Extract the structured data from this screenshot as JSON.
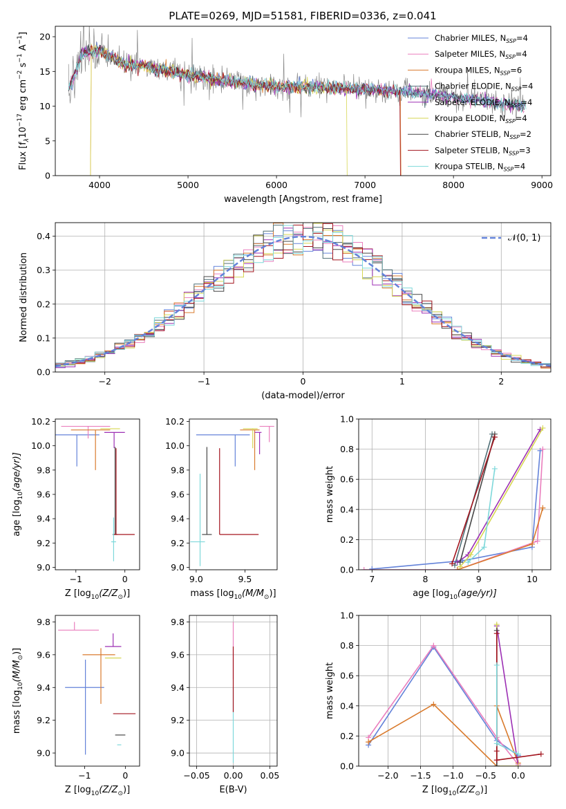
{
  "figure": {
    "title": "PLATE=0269, MJD=51581, FIBERID=0336, z=0.041"
  },
  "colors": [
    "#6382d9",
    "#ea7ebd",
    "#d97a2c",
    "#4f6f77",
    "#9c2fb4",
    "#d6d652",
    "#474747",
    "#a3141e",
    "#7dd8da"
  ],
  "chart_data": [
    {
      "id": "spectrum",
      "type": "line",
      "xlabel": "wavelength [Angstrom, rest frame]",
      "ylabel": "Flux [f",
      "ylabel_parts": [
        "λ",
        "10",
        "−17",
        " erg cm",
        "−2",
        " s",
        "−1",
        " A",
        "−1",
        "]"
      ],
      "xlim": [
        3500,
        9100
      ],
      "ylim": [
        0,
        21.5
      ],
      "xticks": [
        "4000",
        "5000",
        "6000",
        "7000",
        "8000",
        "9000"
      ],
      "xtick_values": [
        4000,
        5000,
        6000,
        7000,
        8000,
        9000
      ],
      "yticks": [
        "0",
        "5",
        "10",
        "15",
        "20"
      ],
      "ytick_values": [
        0,
        5,
        10,
        15,
        20
      ],
      "legend_position": "top-right",
      "observed_color": "#888888",
      "continuum": [
        [
          3650,
          12.5
        ],
        [
          3700,
          14
        ],
        [
          3800,
          17.5
        ],
        [
          4000,
          18
        ],
        [
          4300,
          16
        ],
        [
          4500,
          15.8
        ],
        [
          5000,
          14.5
        ],
        [
          5500,
          13.5
        ],
        [
          6000,
          12.8
        ],
        [
          6500,
          12.7
        ],
        [
          7000,
          12.5
        ],
        [
          7500,
          12
        ],
        [
          8000,
          11.3
        ],
        [
          8500,
          10.5
        ],
        [
          8800,
          10
        ]
      ],
      "model_cutoffs": [
        {
          "series": 2,
          "start": 3900,
          "end": 7400
        },
        {
          "series": 5,
          "start": 3900,
          "end": 6800
        },
        {
          "series": 7,
          "start": 3650,
          "end": 7400
        }
      ],
      "series": [
        {
          "name": "Chabrier MILES, N",
          "sub": "SSP",
          "val": "=4"
        },
        {
          "name": "Salpeter MILES, N",
          "sub": "SSP",
          "val": "=4"
        },
        {
          "name": "Kroupa MILES, N",
          "sub": "SSP",
          "val": "=6"
        },
        {
          "name": "Chabrier ELODIE, N",
          "sub": "SSP",
          "val": "=4"
        },
        {
          "name": "Salpeter ELODIE, N",
          "sub": "SSP",
          "val": "=4"
        },
        {
          "name": "Kroupa ELODIE, N",
          "sub": "SSP",
          "val": "=4"
        },
        {
          "name": "Chabrier STELIB, N",
          "sub": "SSP",
          "val": "=2"
        },
        {
          "name": "Salpeter STELIB, N",
          "sub": "SSP",
          "val": "=3"
        },
        {
          "name": "Kroupa STELIB, N",
          "sub": "SSP",
          "val": "=4"
        }
      ]
    },
    {
      "id": "residuals",
      "type": "step",
      "xlabel": "(data-model)/error",
      "ylabel": "Normed distribution",
      "xlim": [
        -2.5,
        2.5
      ],
      "ylim": [
        0,
        0.44
      ],
      "xticks": [
        "−2",
        "−1",
        "0",
        "1",
        "2"
      ],
      "xtick_values": [
        -2,
        -1,
        0,
        1,
        2
      ],
      "yticks": [
        "0.0",
        "0.1",
        "0.2",
        "0.3",
        "0.4"
      ],
      "ytick_values": [
        0,
        0.1,
        0.2,
        0.3,
        0.4
      ],
      "grid": true,
      "bin_width": 0.1,
      "legend": "𝒩(0, 1)",
      "legend_position": "top-right",
      "gaussian_color": "#6382d9"
    },
    {
      "id": "age-vs-Z",
      "type": "errorbar",
      "xlabel": "Z [log",
      "xlabel_parts": [
        "10",
        "(Z/Z",
        "⊙",
        ")]"
      ],
      "ylabel": "age  [log",
      "ylabel_parts": [
        "10",
        "(age/yr)]"
      ],
      "xlim": [
        -1.42,
        0.3
      ],
      "ylim": [
        8.98,
        10.22
      ],
      "xticks": [
        "−1",
        "0"
      ],
      "xtick_values": [
        -1,
        0
      ],
      "yticks": [
        "9.0",
        "9.2",
        "9.4",
        "9.6",
        "9.8",
        "10.0",
        "10.2"
      ],
      "ytick_values": [
        9.0,
        9.2,
        9.4,
        9.6,
        9.8,
        10.0,
        10.2
      ],
      "points": [
        {
          "c": 0,
          "x": -0.98,
          "y": 10.09,
          "xerr": [
            0.5,
            0.46
          ],
          "yerr": [
            0.26,
            0
          ]
        },
        {
          "c": 1,
          "x": -0.75,
          "y": 10.16,
          "xerr": [
            0.55,
            0.45
          ],
          "yerr": [
            0.1,
            0
          ]
        },
        {
          "c": 2,
          "x": -0.6,
          "y": 10.13,
          "xerr": [
            0.5,
            0.3
          ],
          "yerr": [
            0.33,
            0
          ]
        },
        {
          "c": 4,
          "x": -0.22,
          "y": 10.11,
          "xerr": [
            0.2,
            0.22
          ],
          "yerr": [
            0.13,
            0
          ]
        },
        {
          "c": 5,
          "x": -0.3,
          "y": 10.14,
          "xerr": [
            0.2,
            0.2
          ],
          "yerr": [
            0.0,
            0
          ]
        },
        {
          "c": 6,
          "x": -0.2,
          "y": 9.27,
          "xerr": [
            0.05,
            0.05
          ],
          "yerr": [
            0,
            0.72
          ]
        },
        {
          "c": 7,
          "x": -0.18,
          "y": 9.27,
          "xerr": [
            0.05,
            0.38
          ],
          "yerr": [
            0,
            0.71
          ]
        },
        {
          "c": 8,
          "x": -0.23,
          "y": 9.21,
          "xerr": [
            0.05,
            0.05
          ],
          "yerr": [
            0.16,
            0.2
          ]
        }
      ]
    },
    {
      "id": "age-vs-mass",
      "type": "errorbar",
      "xlabel": "mass [log",
      "xlabel_parts": [
        "10",
        "(M/M",
        "⊙",
        ")]"
      ],
      "ylabel": "",
      "xlim": [
        8.93,
        9.83
      ],
      "ylim": [
        8.98,
        10.22
      ],
      "xticks": [
        "9.0",
        "9.5"
      ],
      "xtick_values": [
        9.0,
        9.5
      ],
      "yticks": [
        "9.0",
        "9.2",
        "9.4",
        "9.6",
        "9.8",
        "10.0",
        "10.2"
      ],
      "ytick_values": [
        9.0,
        9.2,
        9.4,
        9.6,
        9.8,
        10.0,
        10.2
      ],
      "points": [
        {
          "c": 0,
          "x": 9.4,
          "y": 10.09,
          "xerr": [
            0.4,
            0.15
          ],
          "yerr": [
            0.26,
            0
          ]
        },
        {
          "c": 1,
          "x": 9.75,
          "y": 10.16,
          "xerr": [
            0.1,
            0.05
          ],
          "yerr": [
            0.13,
            0
          ]
        },
        {
          "c": 2,
          "x": 9.6,
          "y": 10.13,
          "xerr": [
            0.15,
            0.05
          ],
          "yerr": [
            0.33,
            0
          ]
        },
        {
          "c": 4,
          "x": 9.65,
          "y": 10.11,
          "xerr": [
            0.05,
            0.02
          ],
          "yerr": [
            0.18,
            0
          ]
        },
        {
          "c": 5,
          "x": 9.58,
          "y": 10.14,
          "xerr": [
            0.1,
            0.05
          ],
          "yerr": [
            0.16,
            0
          ]
        },
        {
          "c": 6,
          "x": 9.11,
          "y": 9.27,
          "xerr": [
            0.05,
            0.05
          ],
          "yerr": [
            0,
            0.72
          ]
        },
        {
          "c": 7,
          "x": 9.24,
          "y": 9.27,
          "xerr": [
            0.0,
            0.4
          ],
          "yerr": [
            0,
            0.71
          ]
        },
        {
          "c": 8,
          "x": 9.04,
          "y": 9.21,
          "xerr": [
            0.1,
            0.05
          ],
          "yerr": [
            0.2,
            0.56
          ]
        }
      ]
    },
    {
      "id": "weight-vs-age",
      "type": "line",
      "xlabel": "age  [log",
      "xlabel_parts": [
        "10",
        "(age/yr)]"
      ],
      "ylabel": "mass weight",
      "xlim": [
        6.75,
        10.35
      ],
      "ylim": [
        0,
        1.0
      ],
      "xticks": [
        "7",
        "8",
        "9",
        "10"
      ],
      "xtick_values": [
        7,
        8,
        9,
        10
      ],
      "yticks": [
        "0.0",
        "0.2",
        "0.4",
        "0.6",
        "0.8",
        "1.0"
      ],
      "ytick_values": [
        0,
        0.2,
        0.4,
        0.6,
        0.8,
        1.0
      ],
      "grid": true,
      "series": [
        {
          "c": 0,
          "points": [
            [
              7.0,
              0.005
            ],
            [
              8.7,
              0.06
            ],
            [
              10.0,
              0.15
            ],
            [
              10.15,
              0.79
            ]
          ]
        },
        {
          "c": 1,
          "points": [
            [
              6.85,
              0.0
            ],
            [
              8.6,
              0.0
            ],
            [
              10.1,
              0.19
            ],
            [
              10.2,
              0.8
            ]
          ]
        },
        {
          "c": 2,
          "points": [
            [
              8.6,
              0.0
            ],
            [
              10.0,
              0.17
            ],
            [
              10.2,
              0.41
            ]
          ]
        },
        {
          "c": 3,
          "points": [
            [
              8.55,
              0.03
            ],
            [
              9.25,
              0.9
            ]
          ]
        },
        {
          "c": 4,
          "points": [
            [
              8.6,
              0.05
            ],
            [
              8.8,
              0.1
            ],
            [
              10.15,
              0.93
            ]
          ]
        },
        {
          "c": 5,
          "points": [
            [
              8.65,
              0.02
            ],
            [
              8.85,
              0.1
            ],
            [
              10.2,
              0.94
            ]
          ]
        },
        {
          "c": 6,
          "points": [
            [
              8.65,
              0.05
            ],
            [
              9.3,
              0.9
            ]
          ]
        },
        {
          "c": 7,
          "points": [
            [
              8.5,
              0.04
            ],
            [
              9.3,
              0.88
            ]
          ]
        },
        {
          "c": 8,
          "points": [
            [
              8.8,
              0.05
            ],
            [
              9.1,
              0.15
            ],
            [
              9.3,
              0.67
            ]
          ]
        }
      ]
    },
    {
      "id": "mass-vs-Z",
      "type": "errorbar",
      "xlabel": "Z [log",
      "xlabel_parts": [
        "10",
        "(Z/Z",
        "⊙",
        ")]"
      ],
      "ylabel": "mass [log",
      "ylabel_parts": [
        "10",
        "(M/M",
        "⊙",
        ")]"
      ],
      "xlim": [
        -1.72,
        0.35
      ],
      "ylim": [
        8.92,
        9.84
      ],
      "xticks": [
        "−1",
        "0"
      ],
      "xtick_values": [
        -1,
        0
      ],
      "yticks": [
        "9.0",
        "9.2",
        "9.4",
        "9.6",
        "9.8"
      ],
      "ytick_values": [
        9.0,
        9.2,
        9.4,
        9.6,
        9.8
      ],
      "points": [
        {
          "c": 0,
          "x": -0.98,
          "y": 9.4,
          "xerr": [
            0.5,
            0.46
          ],
          "yerr": [
            0.41,
            0.17
          ]
        },
        {
          "c": 1,
          "x": -1.25,
          "y": 9.75,
          "xerr": [
            0.4,
            0.6
          ],
          "yerr": [
            0.0,
            0.05
          ]
        },
        {
          "c": 2,
          "x": -0.6,
          "y": 9.6,
          "xerr": [
            0.45,
            0.35
          ],
          "yerr": [
            0.3,
            0.04
          ]
        },
        {
          "c": 4,
          "x": -0.3,
          "y": 9.65,
          "xerr": [
            0.2,
            0.2
          ],
          "yerr": [
            0.0,
            0.08
          ]
        },
        {
          "c": 5,
          "x": -0.3,
          "y": 9.58,
          "xerr": [
            0.2,
            0.2
          ],
          "yerr": [
            0.0,
            0.0
          ]
        },
        {
          "c": 6,
          "x": -0.2,
          "y": 9.11,
          "xerr": [
            0.05,
            0.2
          ],
          "yerr": [
            0.0,
            0.0
          ]
        },
        {
          "c": 7,
          "x": -0.25,
          "y": 9.24,
          "xerr": [
            0.05,
            0.5
          ],
          "yerr": [
            0.0,
            0.0
          ]
        },
        {
          "c": 8,
          "x": -0.15,
          "y": 9.05,
          "xerr": [
            0.05,
            0.05
          ],
          "yerr": [
            0.0,
            0.0
          ]
        }
      ]
    },
    {
      "id": "mass-vs-EBV",
      "type": "errorbar",
      "xlabel": "E(B-V)",
      "ylabel": "",
      "xlim": [
        -0.06,
        0.06
      ],
      "ylim": [
        8.92,
        9.84
      ],
      "xticks": [
        "−0.05",
        "0.00",
        "0.05"
      ],
      "xtick_values": [
        -0.05,
        0.0,
        0.05
      ],
      "yticks": [
        "9.0",
        "9.2",
        "9.4",
        "9.6",
        "9.8"
      ],
      "ytick_values": [
        9.0,
        9.2,
        9.4,
        9.6,
        9.8
      ],
      "grid": true,
      "points": [
        {
          "c": 1,
          "x": 0.0,
          "y": 9.6,
          "xerr": [
            0,
            0
          ],
          "yerr": [
            0.15,
            0.2
          ]
        },
        {
          "c": 8,
          "x": 0.0,
          "y": 9.3,
          "xerr": [
            0,
            0
          ],
          "yerr": [
            0.36,
            0.1
          ]
        },
        {
          "c": 7,
          "x": 0.0,
          "y": 9.45,
          "xerr": [
            0,
            0
          ],
          "yerr": [
            0.2,
            0.2
          ]
        }
      ]
    },
    {
      "id": "weight-vs-Z",
      "type": "line",
      "xlabel": "Z [log",
      "xlabel_parts": [
        "10",
        "(Z/Z",
        "⊙",
        ")]"
      ],
      "ylabel": "mass weight",
      "xlim": [
        -2.45,
        0.5
      ],
      "ylim": [
        0,
        1.0
      ],
      "xticks": [
        "−2.0",
        "−1.5",
        "−1.0",
        "−0.5",
        "0.0"
      ],
      "xtick_values": [
        -2.0,
        -1.5,
        -1.0,
        -0.5,
        0.0
      ],
      "yticks": [
        "0.0",
        "0.2",
        "0.4",
        "0.6",
        "0.8",
        "1.0"
      ],
      "ytick_values": [
        0,
        0.2,
        0.4,
        0.6,
        0.8,
        1.0
      ],
      "grid": true,
      "series": [
        {
          "c": 0,
          "points": [
            [
              -2.3,
              0.14
            ],
            [
              -1.3,
              0.79
            ],
            [
              -0.33,
              0.17
            ],
            [
              0.0,
              0.07
            ]
          ]
        },
        {
          "c": 1,
          "points": [
            [
              -2.3,
              0.19
            ],
            [
              -1.3,
              0.8
            ],
            [
              -0.33,
              0.19
            ],
            [
              0.0,
              0.01
            ]
          ]
        },
        {
          "c": 2,
          "points": [
            [
              -2.3,
              0.16
            ],
            [
              -1.3,
              0.41
            ],
            [
              -0.33,
              0.0
            ],
            [
              -0.33,
              0.4
            ],
            [
              0.0,
              0.02
            ]
          ]
        },
        {
          "c": 4,
          "points": [
            [
              -0.33,
              0.0
            ],
            [
              -0.33,
              0.93
            ],
            [
              0.0,
              0.0
            ]
          ]
        },
        {
          "c": 5,
          "points": [
            [
              -0.33,
              0.94
            ],
            [
              -0.33,
              0.0
            ],
            [
              0.0,
              0.0
            ]
          ]
        },
        {
          "c": 6,
          "points": [
            [
              -0.33,
              0.9
            ],
            [
              -0.33,
              0.0
            ]
          ]
        },
        {
          "c": 7,
          "points": [
            [
              -0.33,
              0.88
            ],
            [
              -0.33,
              0.1
            ],
            [
              -0.33,
              0.04
            ],
            [
              0.35,
              0.08
            ]
          ]
        },
        {
          "c": 8,
          "points": [
            [
              -0.33,
              0.67
            ],
            [
              -0.33,
              0.15
            ],
            [
              0.0,
              0.08
            ]
          ]
        }
      ]
    }
  ]
}
